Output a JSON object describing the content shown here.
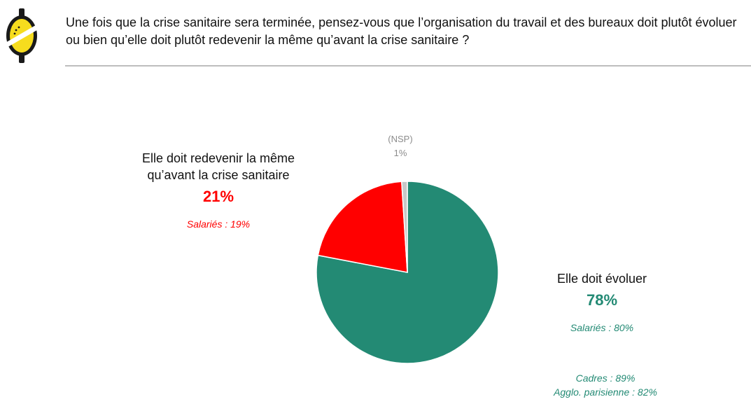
{
  "question": "Une fois que la crise sanitaire sera terminée, pensez-vous que l’organisation du travail et des bureaux doit plutôt évoluer ou bien qu’elle doit plutôt redevenir la même qu’avant la crise sanitaire ?",
  "colors": {
    "evoluer": "#238a74",
    "redevenir": "#ff0000",
    "nsp": "#c8c8c8",
    "logo_yellow": "#f6dc1e",
    "logo_dark": "#1a1a1a"
  },
  "chart_data": {
    "type": "pie",
    "title": "",
    "slices": [
      {
        "label": "Elle doit évoluer",
        "value": 78,
        "value_label": "78%",
        "color": "#238a74",
        "subgroups": [
          "Salariés : 80%",
          "Cadres : 89%",
          "Agglo. parisienne : 82%"
        ]
      },
      {
        "label": "Elle doit redevenir la même qu’avant la crise sanitaire",
        "value": 21,
        "value_label": "21%",
        "color": "#ff0000",
        "subgroups": [
          "Salariés : 19%"
        ]
      },
      {
        "label": "(NSP)",
        "value": 1,
        "value_label": "1%",
        "color": "#c8c8c8",
        "subgroups": []
      }
    ]
  },
  "labels": {
    "redevenir": {
      "text_line1": "Elle doit redevenir la même",
      "text_line2": "qu’avant la crise sanitaire",
      "pct": "21%",
      "salaries": "Salariés : 19%"
    },
    "evoluer": {
      "text": "Elle doit évoluer",
      "pct": "78%",
      "salaries": "Salariés : 80%",
      "cadres": "Cadres : 89%",
      "agglo": "Agglo. parisienne : 82%"
    },
    "nsp": {
      "text": "(NSP)",
      "pct": "1%"
    }
  }
}
